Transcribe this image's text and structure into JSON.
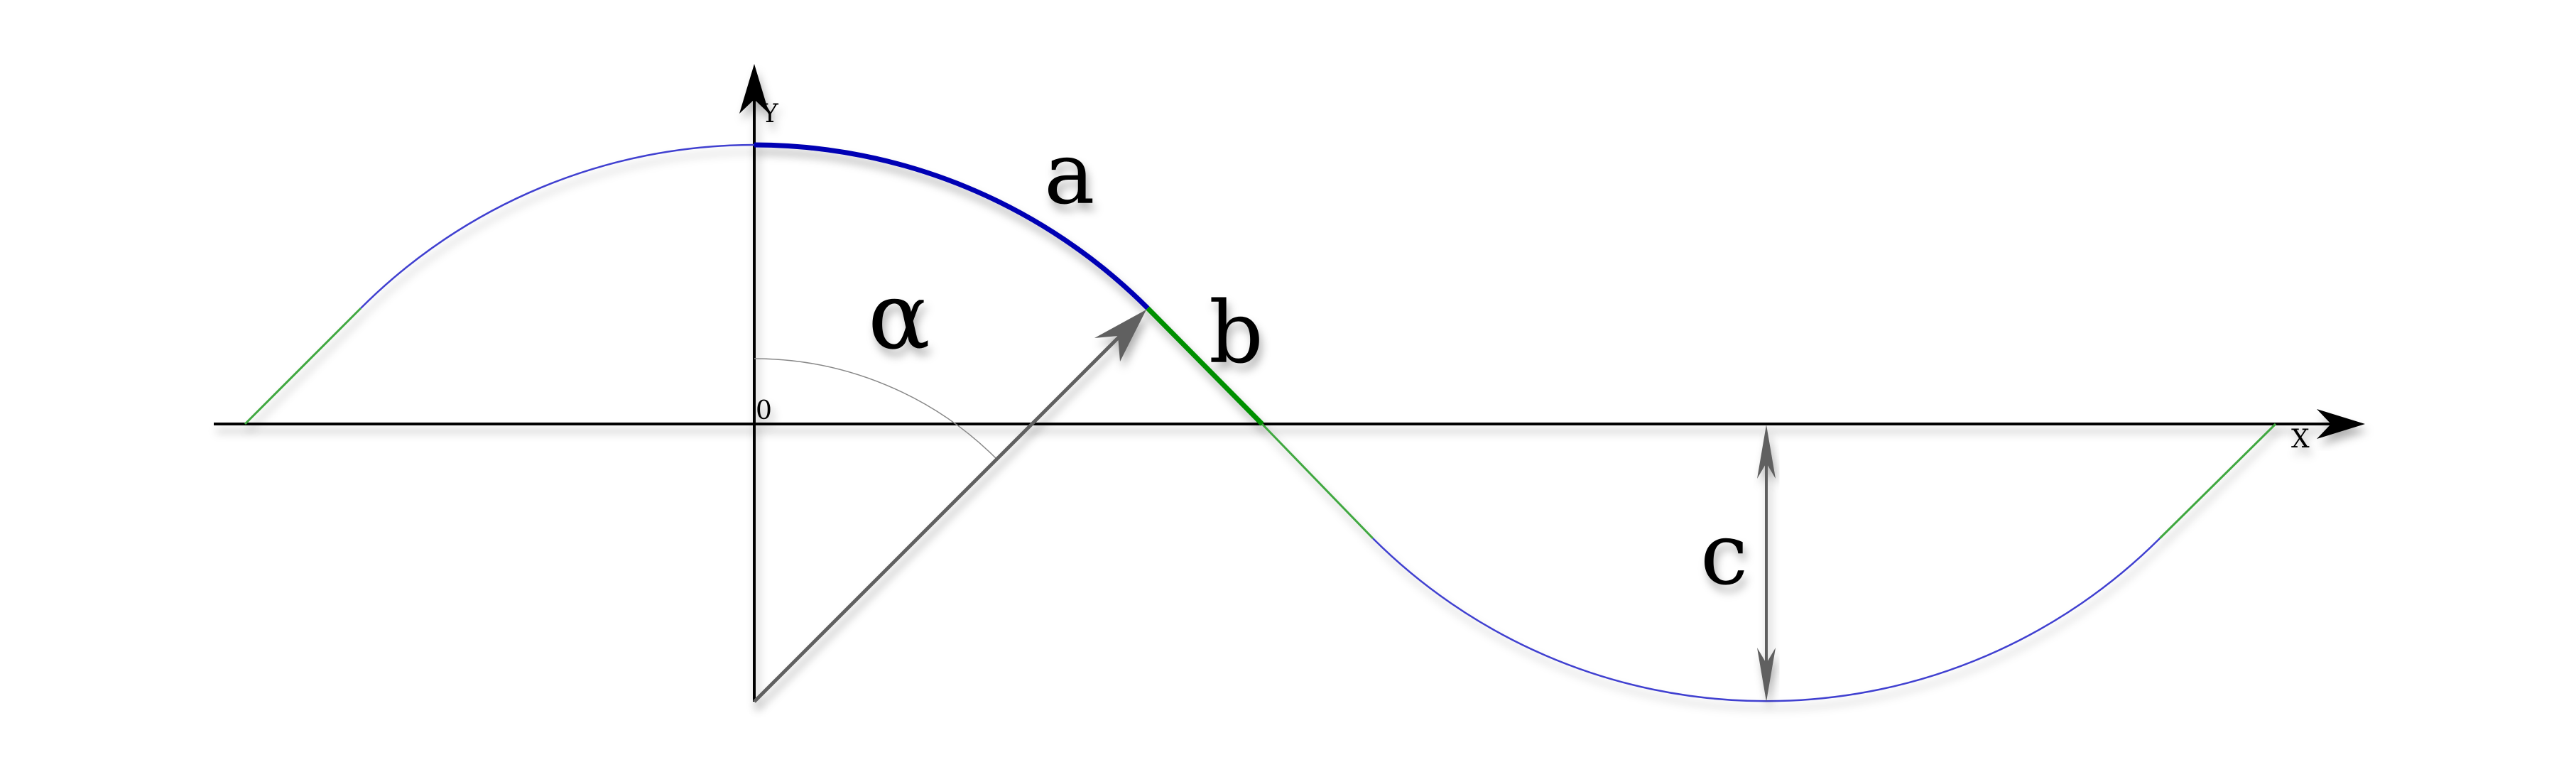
{
  "labels": {
    "y_axis": "Y",
    "x_axis": "X",
    "origin": "0",
    "arc": "a",
    "angle": "α",
    "segment": "b",
    "amplitude": "c"
  },
  "colors": {
    "arc_curve": "#0000b4",
    "curve_thin": "#4040d0",
    "straight_segment": "#009000",
    "straight_segment_thin": "#40a840",
    "axes": "#000000",
    "arrows": "#606060",
    "angle_arc": "#888888"
  }
}
